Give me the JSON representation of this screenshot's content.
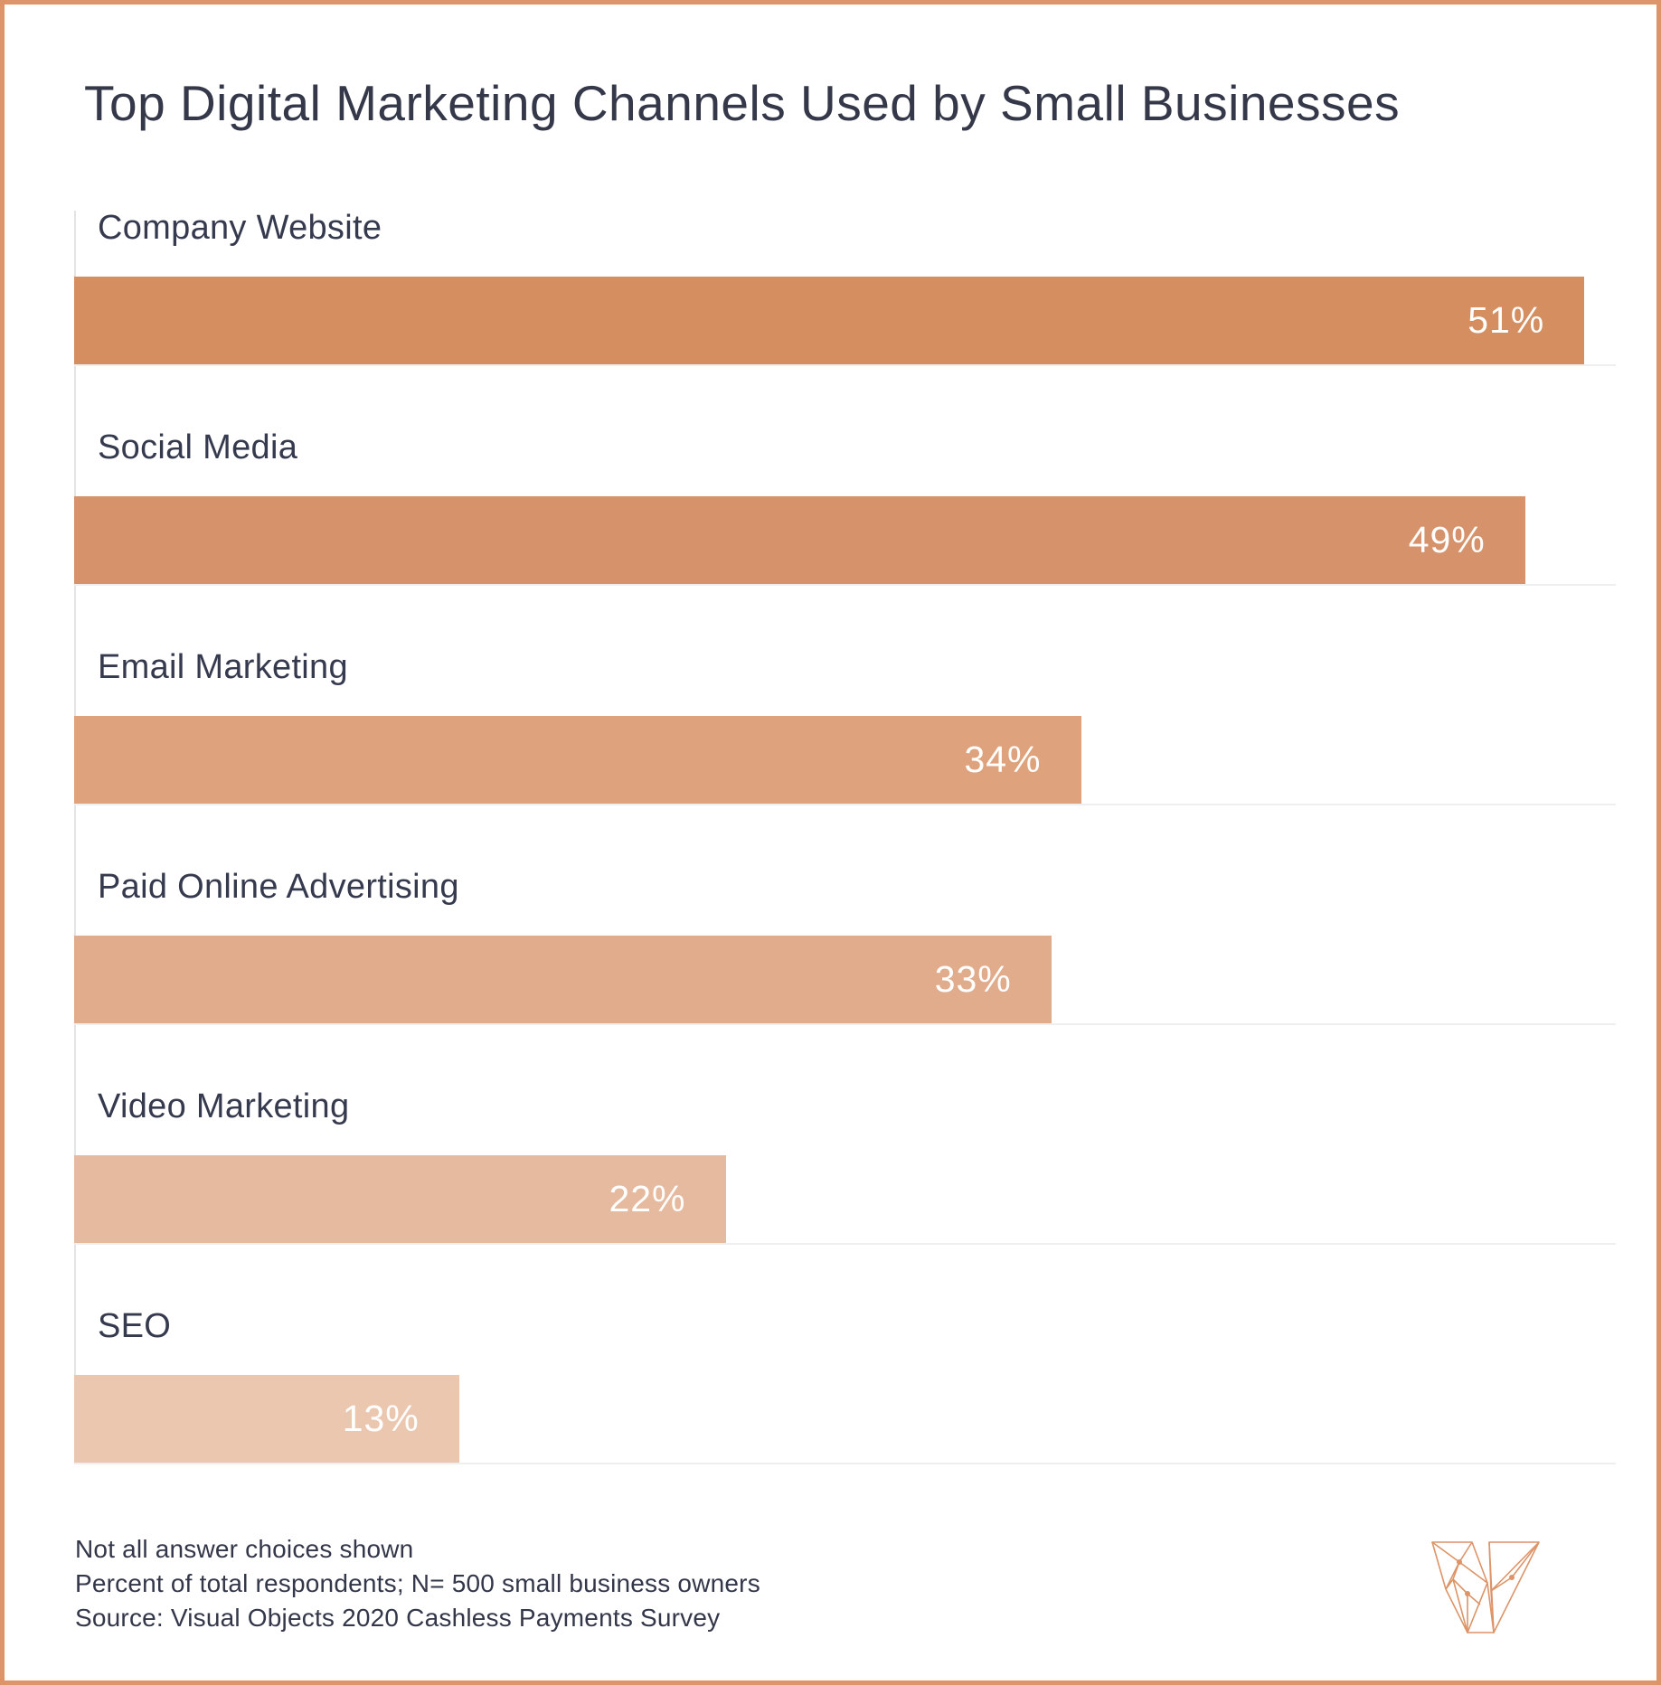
{
  "title": "Top Digital Marketing Channels Used by Small Businesses",
  "chart_data": {
    "type": "bar",
    "orientation": "horizontal",
    "categories": [
      "Company Website",
      "Social Media",
      "Email Marketing",
      "Paid Online Advertising",
      "Video Marketing",
      "SEO"
    ],
    "values": [
      51,
      49,
      34,
      33,
      22,
      13
    ],
    "value_labels": [
      "51%",
      "49%",
      "34%",
      "33%",
      "22%",
      "13%"
    ],
    "bar_colors": [
      "#D48E60",
      "#D6936B",
      "#DEA27C",
      "#E1AC8C",
      "#E6BA9E",
      "#EBC7B0"
    ],
    "title": "Top Digital Marketing Channels Used by Small Businesses",
    "xlabel": "",
    "ylabel": "",
    "xlim": [
      0,
      51
    ],
    "grid": false,
    "legend": "none",
    "value_label_position": "inside-right",
    "value_label_color": "#ffffff"
  },
  "footnotes": [
    "Not all answer choices shown",
    "Percent of total respondents; N= 500 small business owners",
    "Source: Visual Objects 2020 Cashless Payments Survey"
  ],
  "logo_name": "Visual Objects",
  "colors": {
    "border": "#DC9468",
    "text_dark": "#343849",
    "axis_line": "#E4E4E4",
    "background": "#FFFFFF"
  }
}
